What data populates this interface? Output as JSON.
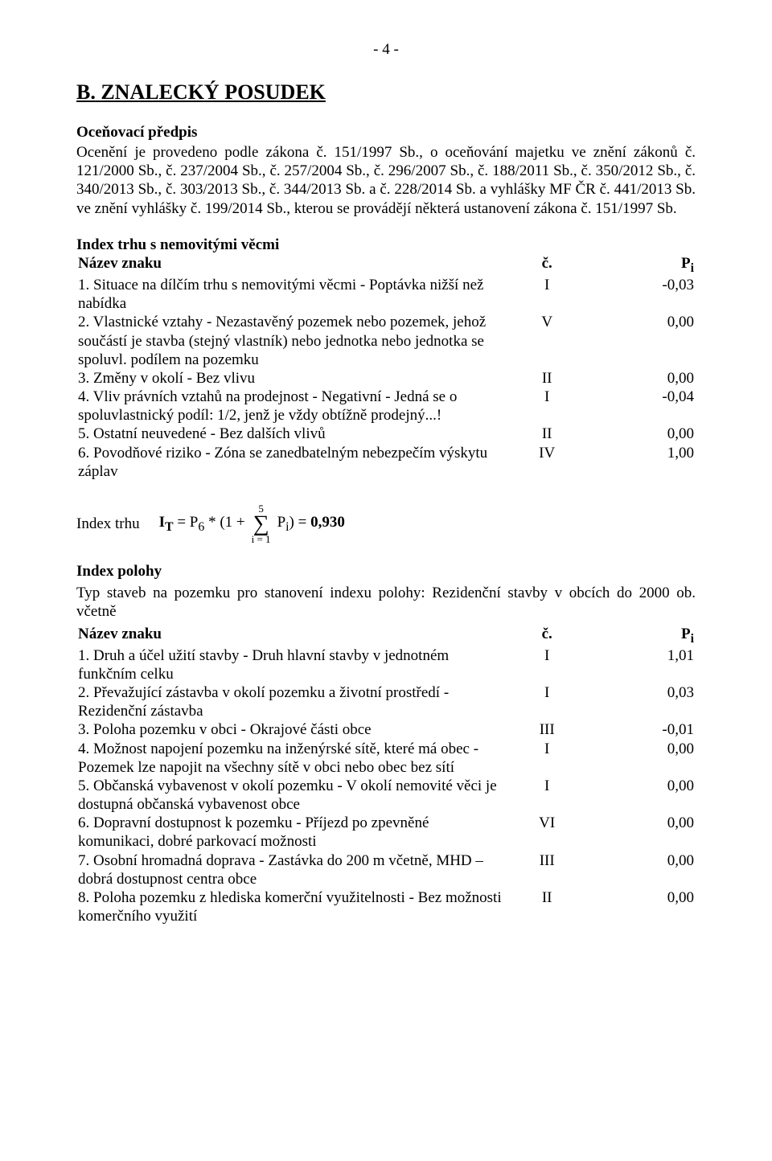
{
  "pageNumber": "- 4 -",
  "sectionLetter": "B.",
  "sectionTitle": "ZNALECKÝ POSUDEK",
  "subheading1": "Oceňovací předpis",
  "predpisText": "Ocenění je provedeno podle zákona č. 151/1997 Sb., o oceňování majetku ve znění zákonů č. 121/2000 Sb., č. 237/2004 Sb., č. 257/2004 Sb., č. 296/2007 Sb., č. 188/2011 Sb., č. 350/2012 Sb., č. 340/2013 Sb., č. 303/2013 Sb., č. 344/2013 Sb. a č. 228/2014 Sb. a vyhlášky MF ČR č. 441/2013 Sb. ve znění vyhlášky č. 199/2014 Sb., kterou se provádějí některá ustanovení zákona č. 151/1997 Sb.",
  "indexTrhuHeading": "Index trhu s nemovitými věcmi",
  "tableHeader": {
    "name": "Název znaku",
    "code": "č.",
    "val": "P",
    "valSub": "i"
  },
  "trhuRows": [
    {
      "name": "1. Situace na dílčím trhu s nemovitými věcmi - Poptávka nižší než nabídka",
      "code": "I",
      "val": "-0,03"
    },
    {
      "name": "2. Vlastnické vztahy - Nezastavěný pozemek nebo pozemek, jehož součástí je stavba (stejný vlastník) nebo jednotka nebo jednotka se spoluvl. podílem na pozemku",
      "code": "V",
      "val": "0,00"
    },
    {
      "name": "3. Změny v okolí - Bez vlivu",
      "code": "II",
      "val": "0,00"
    },
    {
      "name": "4. Vliv právních vztahů na prodejnost - Negativní - Jedná se o spoluvlastnický podíl: 1/2, jenž je vždy obtížně prodejný...!",
      "code": "I",
      "val": "-0,04"
    },
    {
      "name": "5. Ostatní neuvedené - Bez dalších vlivů",
      "code": "II",
      "val": "0,00"
    },
    {
      "name": "6. Povodňové riziko - Zóna se zanedbatelným nebezpečím výskytu záplav",
      "code": "IV",
      "val": "1,00"
    }
  ],
  "formula": {
    "label": "Index trhu",
    "left": "I",
    "leftSub": "T",
    "eq": " = P",
    "p6sub": "6",
    "star": " * (1 + ",
    "sumTop": "5",
    "sumBottom": "i = 1",
    "pI": " P",
    "pISub": "i",
    "close": ") = ",
    "result": "0,930"
  },
  "indexPolohyHeading": "Index polohy",
  "typLine": "Typ staveb na pozemku pro stanovení indexu polohy: Rezidenční stavby v obcích do 2000 ob. včetně",
  "polohyRows": [
    {
      "name": "1. Druh a účel užití stavby - Druh hlavní stavby v jednotném funkčním celku",
      "code": "I",
      "val": "1,01"
    },
    {
      "name": "2. Převažující zástavba v okolí pozemku a životní prostředí - Rezidenční zástavba",
      "code": "I",
      "val": "0,03"
    },
    {
      "name": "3. Poloha pozemku v obci - Okrajové části obce",
      "code": "III",
      "val": "-0,01"
    },
    {
      "name": "4. Možnost napojení pozemku na inženýrské sítě, které má obec - Pozemek lze napojit na všechny sítě v obci nebo obec bez sítí",
      "code": "I",
      "val": "0,00"
    },
    {
      "name": "5. Občanská vybavenost v okolí pozemku - V okolí nemovité věci je dostupná občanská vybavenost obce",
      "code": "I",
      "val": "0,00"
    },
    {
      "name": "6. Dopravní dostupnost k pozemku - Příjezd po zpevněné komunikaci, dobré parkovací možnosti",
      "code": "VI",
      "val": "0,00"
    },
    {
      "name": "7. Osobní hromadná doprava - Zastávka do 200 m včetně, MHD – dobrá dostupnost centra obce",
      "code": "III",
      "val": "0,00"
    },
    {
      "name": "8. Poloha pozemku z hlediska komerční využitelnosti - Bez možnosti komerčního využití",
      "code": "II",
      "val": "0,00"
    }
  ]
}
